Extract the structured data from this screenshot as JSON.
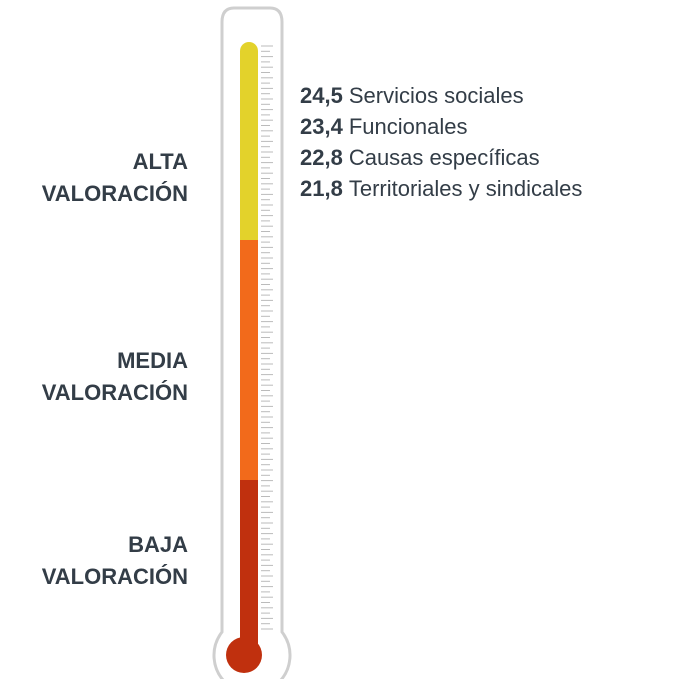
{
  "zones": [
    {
      "lines": [
        "ALTA",
        "VALORACIÓN"
      ]
    },
    {
      "lines": [
        "MEDIA",
        "VALORACIÓN"
      ]
    },
    {
      "lines": [
        "BAJA",
        "VALORACIÓN"
      ]
    }
  ],
  "items": [
    {
      "value": "24,5",
      "label": "Servicios sociales"
    },
    {
      "value": "23,4",
      "label": "Funcionales"
    },
    {
      "value": "22,8",
      "label": "Causas específicas"
    },
    {
      "value": "21,8",
      "label": "Territoriales y sindicales"
    }
  ]
}
